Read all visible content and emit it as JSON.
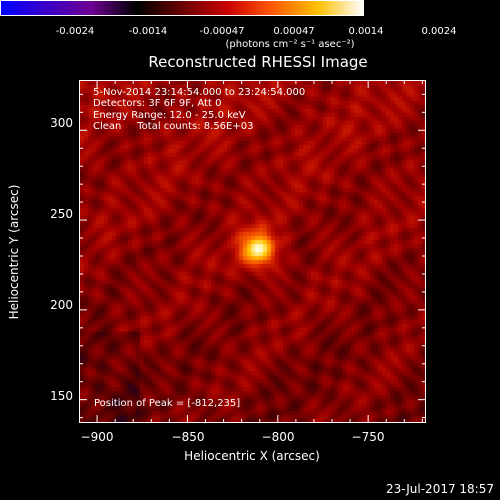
{
  "colorbar": {
    "tick_labels": [
      "-0.0024",
      "-0.0014",
      "-0.00047",
      "0.00047",
      "0.0014",
      "0.0024"
    ],
    "tick_values": [
      -0.0024,
      -0.0014,
      -0.00047,
      0.00047,
      0.0014,
      0.0024
    ],
    "range": [
      -0.0024,
      0.0024
    ],
    "units_label": "(photons cm⁻² s⁻¹ asec⁻²)",
    "colors": [
      "#0000ff",
      "#3a00c8",
      "#6c0090",
      "#000000",
      "#6a0000",
      "#c80000",
      "#ff5a00",
      "#ffc000",
      "#ffffff"
    ]
  },
  "chart_data": {
    "type": "heatmap",
    "title": "Reconstructed RHESSI Image",
    "xlabel": "Heliocentric X (arcsec)",
    "ylabel": "Heliocentric Y (arcsec)",
    "xlim": [
      -910,
      -718
    ],
    "ylim": [
      137,
      328
    ],
    "xticks": [
      -900,
      -850,
      -800,
      -750
    ],
    "yticks": [
      150,
      200,
      250,
      300
    ],
    "xtick_labels": [
      "−900",
      "−850",
      "−800",
      "−750"
    ],
    "ytick_labels": [
      "150",
      "200",
      "250",
      "300"
    ],
    "peak": {
      "x": -812,
      "y": 235
    },
    "annotations": [
      "5-Nov-2014 23:14:54.000 to 23:24:54.000",
      "Detectors: 3F 6F 9F, Att 0",
      "Energy Range: 12.0 - 25.0 keV",
      "Clean     Total counts: 8.56E+03"
    ],
    "peak_label": "Position of Peak = [-812,235]"
  },
  "footer": {
    "timestamp": "23-Jul-2017 18:57"
  }
}
